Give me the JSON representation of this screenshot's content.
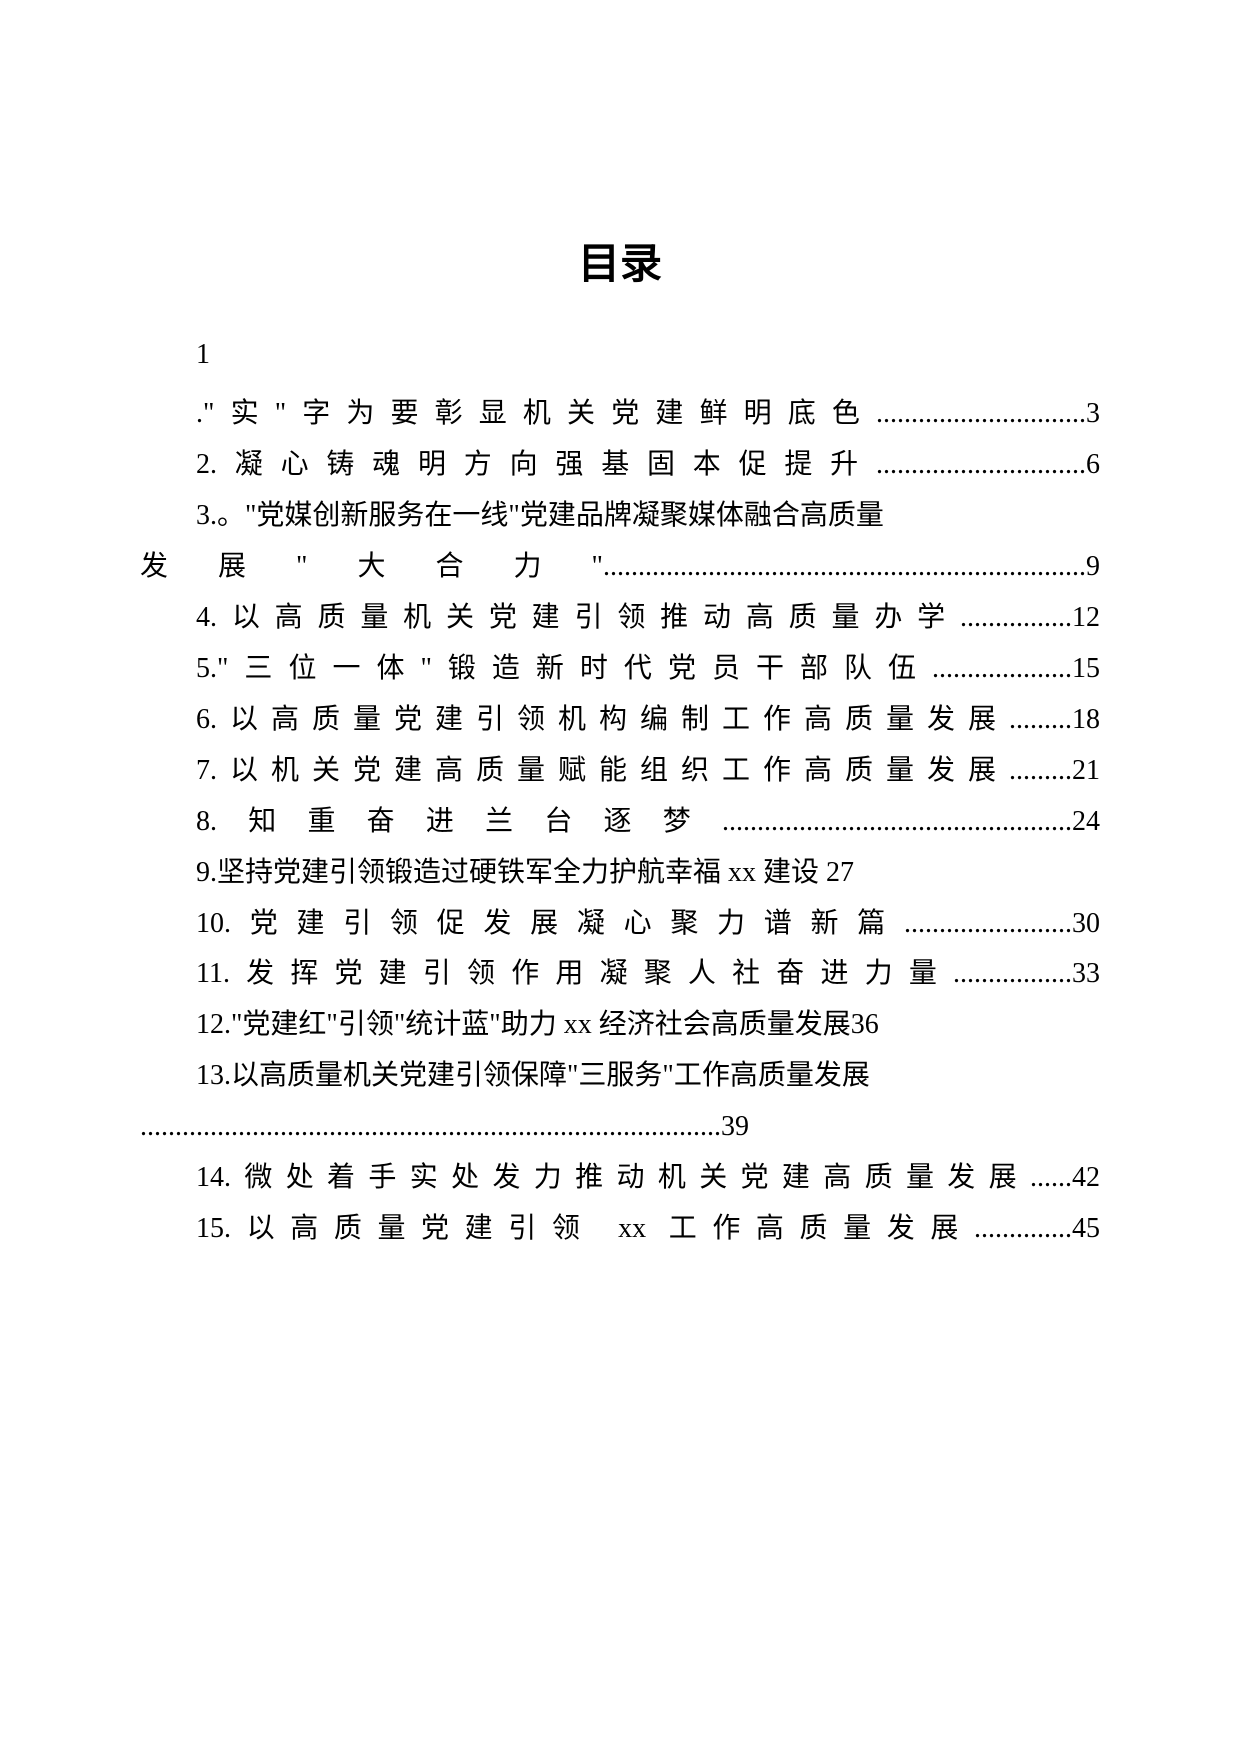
{
  "title": "目录",
  "firstNumber": "1",
  "entries": [
    {
      "text": ".\"实\"字为要彰显机关党建鲜明底色",
      "dots": "..............................",
      "page": "3",
      "indent": true
    },
    {
      "text": "2.凝心铸魂明方向强基固本促提升",
      "dots": "..............................",
      "page": "6",
      "indent": true
    },
    {
      "text": "3.。\"党媒创新服务在一线\"党建品牌凝聚媒体融合高质量",
      "dots": "",
      "page": "",
      "indent": true,
      "nowrap": true
    },
    {
      "text": "发展\"大合力\"",
      "dots": ".....................................................................",
      "page": "9",
      "indent": false
    },
    {
      "text": "4.以高质量机关党建引领推动高质量办学",
      "dots": "................",
      "page": "12",
      "indent": true
    },
    {
      "text": "5.\"三位一体\"锻造新时代党员干部队伍",
      "dots": "....................",
      "page": "15",
      "indent": true
    },
    {
      "text": "6.以高质量党建引领机构编制工作高质量发展",
      "dots": ".........",
      "page": "18",
      "indent": true
    },
    {
      "text": "7.以机关党建高质量赋能组织工作高质量发展",
      "dots": ".........",
      "page": "21",
      "indent": true
    },
    {
      "text": "8.知重奋进兰台逐梦",
      "dots": "..................................................",
      "page": "24",
      "indent": true
    },
    {
      "text": "9.坚持党建引领锻造过硬铁军全力护航幸福 xx 建设 27",
      "dots": "",
      "page": "",
      "indent": true,
      "nowrap": true
    },
    {
      "text": "10.党建引领促发展凝心聚力谱新篇",
      "dots": "........................",
      "page": "30",
      "indent": true
    },
    {
      "text": "11.发挥党建引领作用凝聚人社奋进力量",
      "dots": ".................",
      "page": "33",
      "indent": true
    },
    {
      "text": "12.\"党建红\"引领\"统计蓝\"助力 xx 经济社会高质量发展36",
      "dots": "",
      "page": "",
      "indent": true,
      "nowrap": true
    },
    {
      "text": "13.以高质量机关党建引领保障\"三服务\"工作高质量发展",
      "dots": "",
      "page": "",
      "indent": true,
      "nowrap": true
    },
    {
      "text": "",
      "dots": "...................................................................................",
      "page": "39",
      "indent": false
    },
    {
      "text": "14.微处着手实处发力推动机关党建高质量发展",
      "dots": "......",
      "page": "42",
      "indent": true
    },
    {
      "text": "15.以高质量党建引领 xx 工作高质量发展",
      "dots": "..............",
      "page": "45",
      "indent": true
    }
  ]
}
